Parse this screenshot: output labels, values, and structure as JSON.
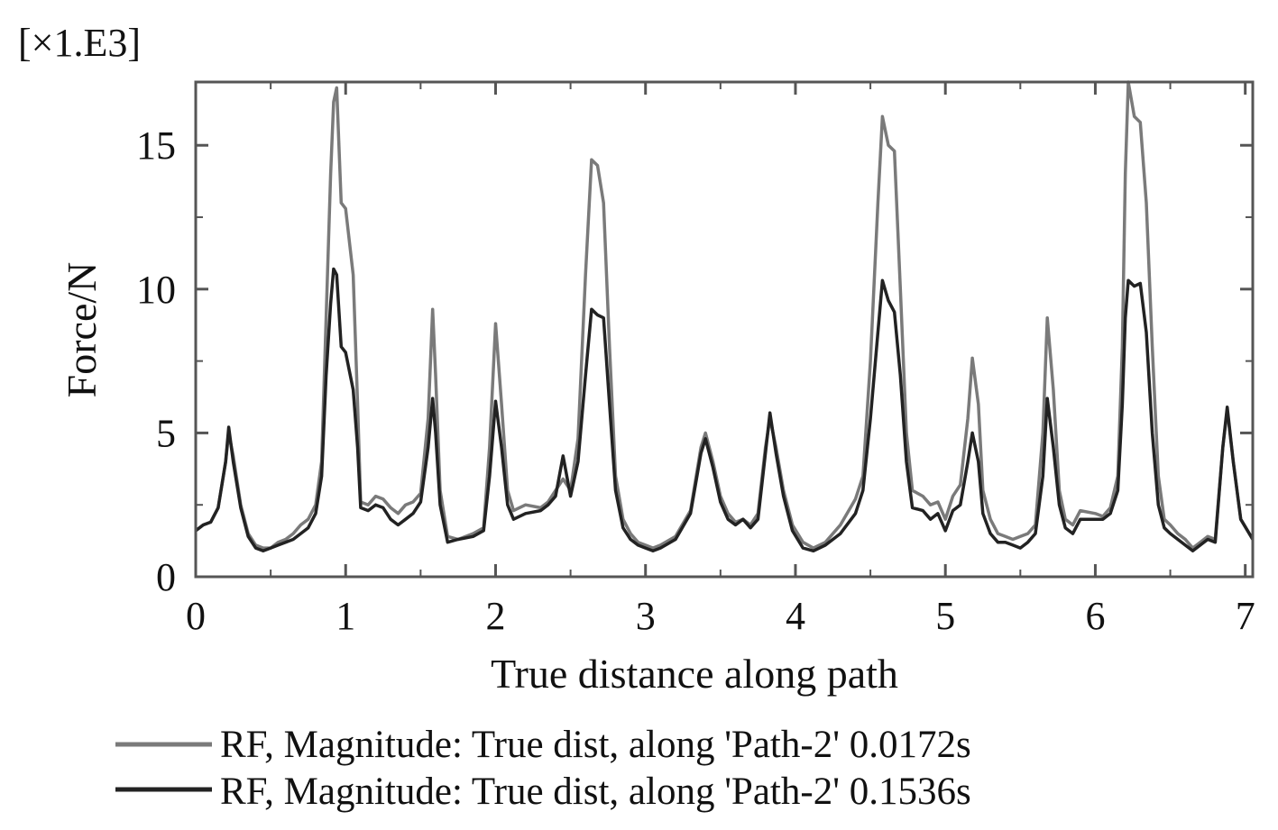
{
  "chart_data": {
    "type": "line",
    "multiplier_label": "[×1.E3]",
    "xlabel": "True distance along path",
    "ylabel": "Force/N",
    "xlim": [
      0,
      7.05
    ],
    "ylim": [
      0,
      17.2
    ],
    "x_ticks": [
      0,
      1,
      2,
      3,
      4,
      5,
      6,
      7
    ],
    "y_ticks": [
      0,
      5,
      10,
      15
    ],
    "x_tick_labels": [
      "0",
      "1",
      "2",
      "3",
      "4",
      "5",
      "6",
      "7"
    ],
    "y_tick_labels": [
      "0",
      "5",
      "10",
      "15"
    ],
    "grid": false,
    "legend_position": "bottom",
    "series": [
      {
        "name": "RF, Magnitude: True dist, along 'Path-2' 0.0172s",
        "color": "#7a7a7a",
        "points": [
          [
            0,
            1.6
          ],
          [
            0.05,
            1.8
          ],
          [
            0.1,
            1.9
          ],
          [
            0.15,
            2.4
          ],
          [
            0.2,
            4.0
          ],
          [
            0.22,
            5.0
          ],
          [
            0.25,
            4.2
          ],
          [
            0.3,
            2.5
          ],
          [
            0.35,
            1.5
          ],
          [
            0.4,
            1.1
          ],
          [
            0.45,
            1.0
          ],
          [
            0.5,
            1.0
          ],
          [
            0.55,
            1.2
          ],
          [
            0.6,
            1.3
          ],
          [
            0.65,
            1.5
          ],
          [
            0.7,
            1.8
          ],
          [
            0.75,
            2.0
          ],
          [
            0.8,
            2.5
          ],
          [
            0.84,
            4.0
          ],
          [
            0.87,
            9.0
          ],
          [
            0.9,
            14.0
          ],
          [
            0.92,
            16.5
          ],
          [
            0.94,
            17.0
          ],
          [
            0.97,
            13.0
          ],
          [
            1.0,
            12.8
          ],
          [
            1.05,
            10.5
          ],
          [
            1.08,
            6.0
          ],
          [
            1.1,
            2.6
          ],
          [
            1.15,
            2.5
          ],
          [
            1.2,
            2.8
          ],
          [
            1.25,
            2.7
          ],
          [
            1.3,
            2.4
          ],
          [
            1.35,
            2.2
          ],
          [
            1.4,
            2.5
          ],
          [
            1.45,
            2.6
          ],
          [
            1.5,
            2.9
          ],
          [
            1.55,
            5.5
          ],
          [
            1.58,
            9.3
          ],
          [
            1.6,
            7.0
          ],
          [
            1.63,
            3.0
          ],
          [
            1.68,
            1.4
          ],
          [
            1.75,
            1.3
          ],
          [
            1.85,
            1.5
          ],
          [
            1.92,
            1.7
          ],
          [
            1.96,
            4.5
          ],
          [
            2.0,
            8.8
          ],
          [
            2.04,
            6.0
          ],
          [
            2.08,
            3.0
          ],
          [
            2.12,
            2.3
          ],
          [
            2.2,
            2.5
          ],
          [
            2.3,
            2.4
          ],
          [
            2.35,
            2.6
          ],
          [
            2.4,
            3.0
          ],
          [
            2.45,
            3.4
          ],
          [
            2.5,
            3.0
          ],
          [
            2.55,
            4.8
          ],
          [
            2.6,
            10.5
          ],
          [
            2.64,
            14.5
          ],
          [
            2.68,
            14.3
          ],
          [
            2.72,
            13.0
          ],
          [
            2.76,
            8.0
          ],
          [
            2.8,
            3.5
          ],
          [
            2.85,
            2.0
          ],
          [
            2.9,
            1.5
          ],
          [
            2.95,
            1.2
          ],
          [
            3.0,
            1.1
          ],
          [
            3.05,
            1.0
          ],
          [
            3.1,
            1.1
          ],
          [
            3.2,
            1.4
          ],
          [
            3.3,
            2.3
          ],
          [
            3.37,
            4.5
          ],
          [
            3.4,
            5.0
          ],
          [
            3.45,
            4.0
          ],
          [
            3.5,
            2.8
          ],
          [
            3.55,
            2.2
          ],
          [
            3.6,
            1.9
          ],
          [
            3.65,
            2.0
          ],
          [
            3.7,
            1.8
          ],
          [
            3.75,
            2.2
          ],
          [
            3.8,
            4.5
          ],
          [
            3.83,
            5.5
          ],
          [
            3.87,
            4.5
          ],
          [
            3.92,
            3.0
          ],
          [
            3.98,
            1.8
          ],
          [
            4.05,
            1.2
          ],
          [
            4.12,
            1.0
          ],
          [
            4.2,
            1.2
          ],
          [
            4.3,
            1.8
          ],
          [
            4.4,
            2.7
          ],
          [
            4.45,
            3.5
          ],
          [
            4.5,
            7.5
          ],
          [
            4.55,
            13.0
          ],
          [
            4.58,
            16.0
          ],
          [
            4.62,
            15.0
          ],
          [
            4.66,
            14.8
          ],
          [
            4.7,
            10.0
          ],
          [
            4.74,
            5.0
          ],
          [
            4.78,
            3.0
          ],
          [
            4.85,
            2.8
          ],
          [
            4.9,
            2.5
          ],
          [
            4.95,
            2.6
          ],
          [
            5.0,
            2.0
          ],
          [
            5.05,
            2.8
          ],
          [
            5.1,
            3.2
          ],
          [
            5.15,
            5.5
          ],
          [
            5.18,
            7.6
          ],
          [
            5.22,
            6.0
          ],
          [
            5.25,
            3.0
          ],
          [
            5.3,
            2.0
          ],
          [
            5.35,
            1.5
          ],
          [
            5.4,
            1.4
          ],
          [
            5.45,
            1.3
          ],
          [
            5.5,
            1.4
          ],
          [
            5.55,
            1.5
          ],
          [
            5.6,
            1.8
          ],
          [
            5.65,
            5.0
          ],
          [
            5.68,
            9.0
          ],
          [
            5.72,
            6.5
          ],
          [
            5.76,
            3.0
          ],
          [
            5.8,
            2.0
          ],
          [
            5.85,
            1.8
          ],
          [
            5.9,
            2.3
          ],
          [
            6.0,
            2.2
          ],
          [
            6.05,
            2.1
          ],
          [
            6.1,
            2.4
          ],
          [
            6.15,
            3.5
          ],
          [
            6.18,
            8.0
          ],
          [
            6.2,
            14.0
          ],
          [
            6.22,
            17.2
          ],
          [
            6.26,
            16.0
          ],
          [
            6.3,
            15.8
          ],
          [
            6.34,
            13.0
          ],
          [
            6.38,
            8.0
          ],
          [
            6.42,
            3.5
          ],
          [
            6.46,
            2.0
          ],
          [
            6.5,
            1.8
          ],
          [
            6.55,
            1.5
          ],
          [
            6.6,
            1.3
          ],
          [
            6.65,
            1.0
          ],
          [
            6.7,
            1.2
          ],
          [
            6.75,
            1.4
          ],
          [
            6.8,
            1.3
          ],
          [
            6.85,
            4.5
          ],
          [
            6.88,
            5.8
          ],
          [
            6.92,
            4.0
          ],
          [
            6.97,
            2.0
          ],
          [
            7.05,
            1.3
          ]
        ]
      },
      {
        "name": "RF, Magnitude: True dist, along 'Path-2' 0.1536s",
        "color": "#222222",
        "points": [
          [
            0,
            1.6
          ],
          [
            0.05,
            1.8
          ],
          [
            0.1,
            1.9
          ],
          [
            0.15,
            2.4
          ],
          [
            0.2,
            4.0
          ],
          [
            0.22,
            5.2
          ],
          [
            0.25,
            4.0
          ],
          [
            0.3,
            2.4
          ],
          [
            0.35,
            1.4
          ],
          [
            0.4,
            1.0
          ],
          [
            0.45,
            0.9
          ],
          [
            0.5,
            1.0
          ],
          [
            0.55,
            1.1
          ],
          [
            0.6,
            1.2
          ],
          [
            0.65,
            1.3
          ],
          [
            0.7,
            1.5
          ],
          [
            0.75,
            1.7
          ],
          [
            0.8,
            2.2
          ],
          [
            0.84,
            3.5
          ],
          [
            0.87,
            7.0
          ],
          [
            0.9,
            9.5
          ],
          [
            0.92,
            10.7
          ],
          [
            0.94,
            10.5
          ],
          [
            0.97,
            8.0
          ],
          [
            1.0,
            7.8
          ],
          [
            1.05,
            6.5
          ],
          [
            1.08,
            4.5
          ],
          [
            1.1,
            2.4
          ],
          [
            1.15,
            2.3
          ],
          [
            1.2,
            2.5
          ],
          [
            1.25,
            2.4
          ],
          [
            1.3,
            2.0
          ],
          [
            1.35,
            1.8
          ],
          [
            1.4,
            2.0
          ],
          [
            1.45,
            2.2
          ],
          [
            1.5,
            2.6
          ],
          [
            1.55,
            4.5
          ],
          [
            1.58,
            6.2
          ],
          [
            1.6,
            5.0
          ],
          [
            1.63,
            2.5
          ],
          [
            1.68,
            1.2
          ],
          [
            1.75,
            1.3
          ],
          [
            1.85,
            1.4
          ],
          [
            1.92,
            1.6
          ],
          [
            1.96,
            3.5
          ],
          [
            2.0,
            6.1
          ],
          [
            2.04,
            4.5
          ],
          [
            2.08,
            2.5
          ],
          [
            2.12,
            2.0
          ],
          [
            2.2,
            2.2
          ],
          [
            2.3,
            2.3
          ],
          [
            2.35,
            2.5
          ],
          [
            2.4,
            2.8
          ],
          [
            2.45,
            4.2
          ],
          [
            2.5,
            2.8
          ],
          [
            2.55,
            4.0
          ],
          [
            2.6,
            7.0
          ],
          [
            2.64,
            9.3
          ],
          [
            2.68,
            9.1
          ],
          [
            2.72,
            9.0
          ],
          [
            2.76,
            6.0
          ],
          [
            2.8,
            3.0
          ],
          [
            2.85,
            1.7
          ],
          [
            2.9,
            1.3
          ],
          [
            2.95,
            1.1
          ],
          [
            3.0,
            1.0
          ],
          [
            3.05,
            0.9
          ],
          [
            3.1,
            1.0
          ],
          [
            3.2,
            1.3
          ],
          [
            3.3,
            2.2
          ],
          [
            3.37,
            4.3
          ],
          [
            3.4,
            4.8
          ],
          [
            3.45,
            3.8
          ],
          [
            3.5,
            2.6
          ],
          [
            3.55,
            2.0
          ],
          [
            3.6,
            1.8
          ],
          [
            3.65,
            2.0
          ],
          [
            3.7,
            1.7
          ],
          [
            3.75,
            2.0
          ],
          [
            3.8,
            4.3
          ],
          [
            3.83,
            5.7
          ],
          [
            3.87,
            4.3
          ],
          [
            3.92,
            2.8
          ],
          [
            3.98,
            1.6
          ],
          [
            4.05,
            1.0
          ],
          [
            4.12,
            0.9
          ],
          [
            4.2,
            1.1
          ],
          [
            4.3,
            1.5
          ],
          [
            4.4,
            2.2
          ],
          [
            4.45,
            3.0
          ],
          [
            4.5,
            5.5
          ],
          [
            4.55,
            8.5
          ],
          [
            4.58,
            10.3
          ],
          [
            4.62,
            9.6
          ],
          [
            4.66,
            9.2
          ],
          [
            4.7,
            7.0
          ],
          [
            4.74,
            4.0
          ],
          [
            4.78,
            2.4
          ],
          [
            4.85,
            2.3
          ],
          [
            4.9,
            2.0
          ],
          [
            4.95,
            2.2
          ],
          [
            5.0,
            1.6
          ],
          [
            5.05,
            2.3
          ],
          [
            5.1,
            2.5
          ],
          [
            5.15,
            4.0
          ],
          [
            5.18,
            5.0
          ],
          [
            5.22,
            4.0
          ],
          [
            5.25,
            2.2
          ],
          [
            5.3,
            1.5
          ],
          [
            5.35,
            1.2
          ],
          [
            5.4,
            1.2
          ],
          [
            5.45,
            1.1
          ],
          [
            5.5,
            1.0
          ],
          [
            5.55,
            1.2
          ],
          [
            5.6,
            1.5
          ],
          [
            5.65,
            3.5
          ],
          [
            5.68,
            6.2
          ],
          [
            5.72,
            4.5
          ],
          [
            5.76,
            2.5
          ],
          [
            5.8,
            1.7
          ],
          [
            5.85,
            1.5
          ],
          [
            5.9,
            2.0
          ],
          [
            6.0,
            2.0
          ],
          [
            6.05,
            2.0
          ],
          [
            6.1,
            2.2
          ],
          [
            6.15,
            3.0
          ],
          [
            6.18,
            6.0
          ],
          [
            6.2,
            9.0
          ],
          [
            6.22,
            10.3
          ],
          [
            6.26,
            10.1
          ],
          [
            6.3,
            10.2
          ],
          [
            6.34,
            8.5
          ],
          [
            6.38,
            5.0
          ],
          [
            6.42,
            2.5
          ],
          [
            6.46,
            1.7
          ],
          [
            6.5,
            1.5
          ],
          [
            6.55,
            1.3
          ],
          [
            6.6,
            1.1
          ],
          [
            6.65,
            0.9
          ],
          [
            6.7,
            1.1
          ],
          [
            6.75,
            1.3
          ],
          [
            6.8,
            1.2
          ],
          [
            6.85,
            4.5
          ],
          [
            6.88,
            5.9
          ],
          [
            6.92,
            4.0
          ],
          [
            6.97,
            2.0
          ],
          [
            7.05,
            1.3
          ]
        ]
      }
    ]
  }
}
